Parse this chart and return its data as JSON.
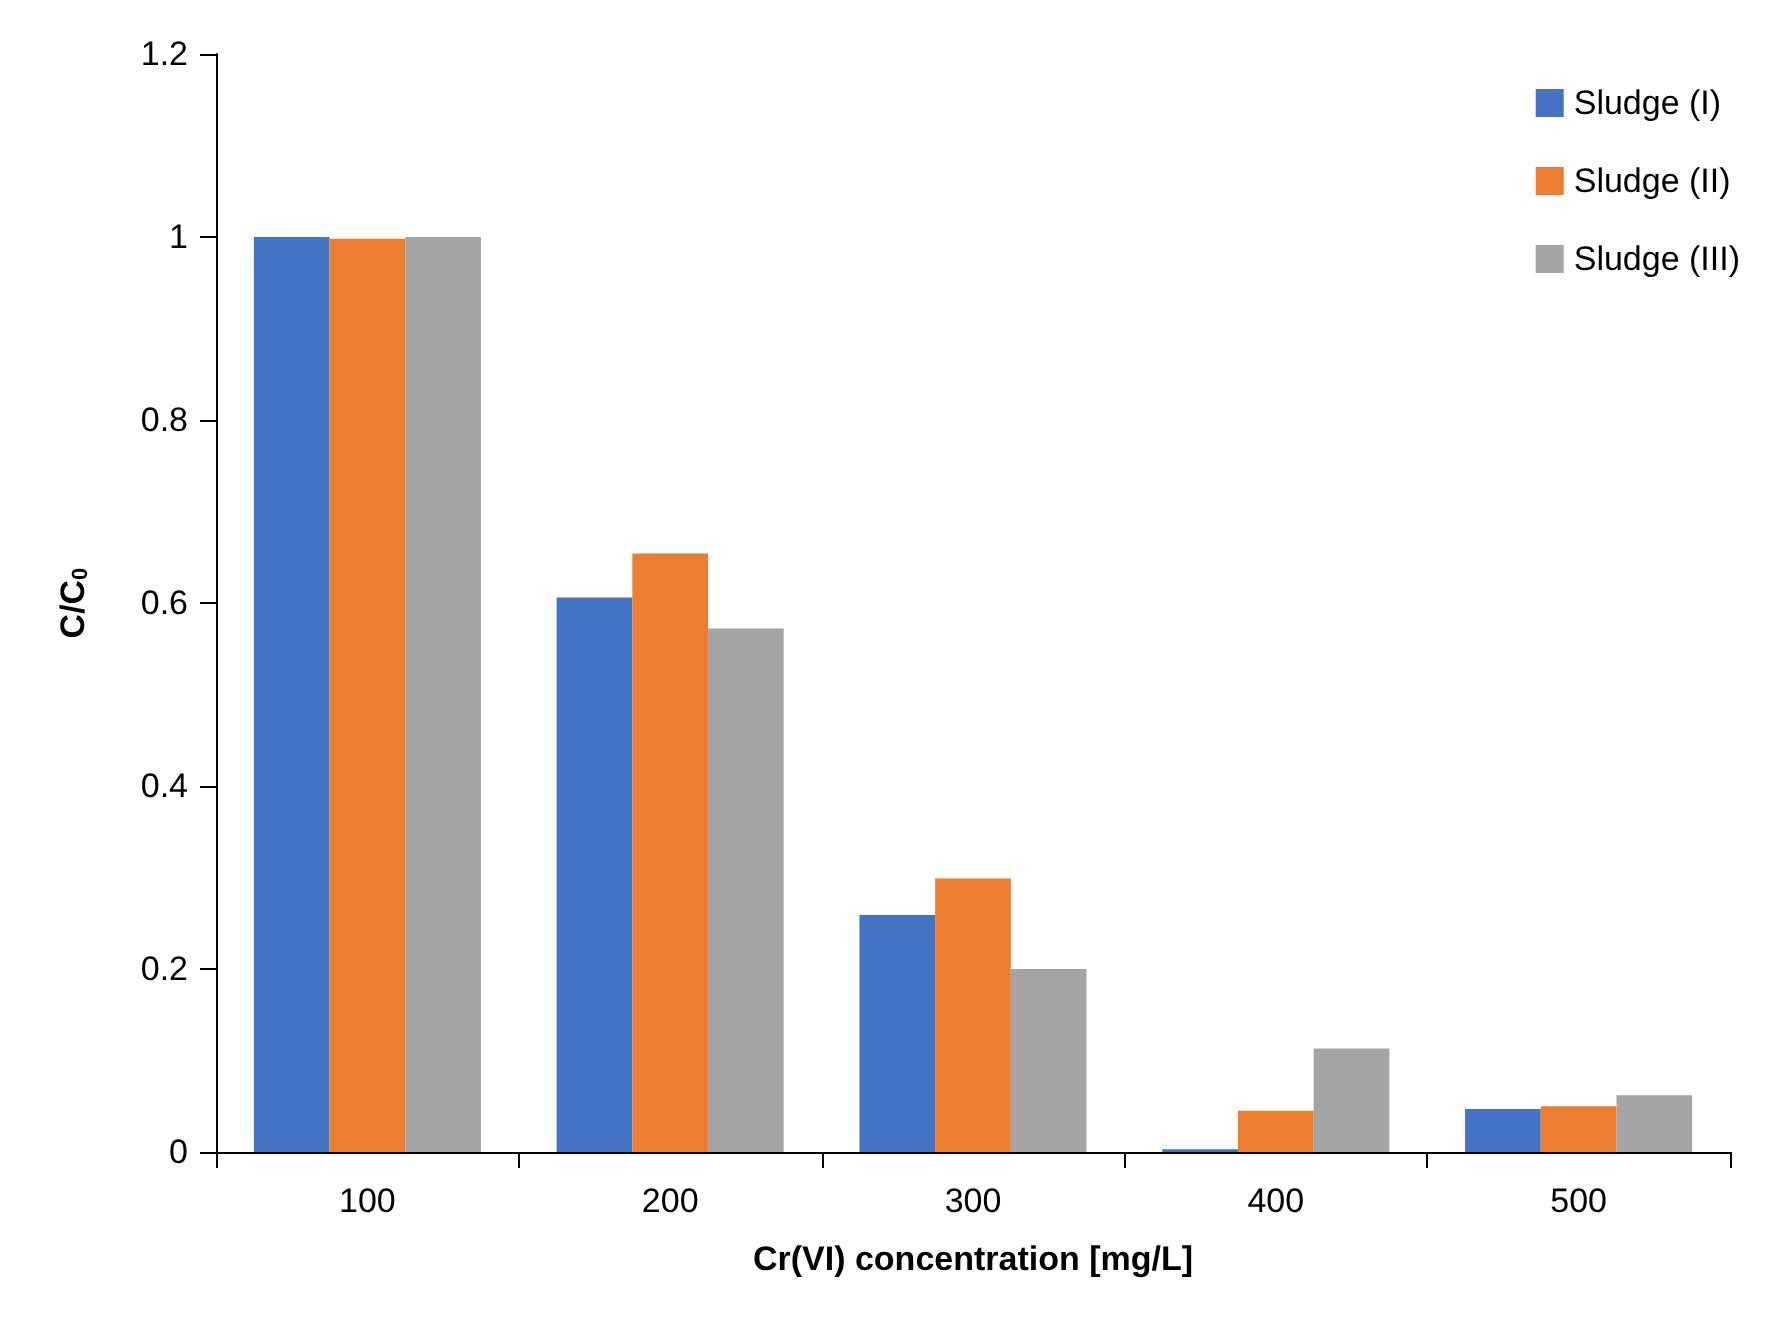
{
  "chart_data": {
    "type": "bar",
    "xlabel": "Cr(VI) concentration [mg/L]",
    "ylabel": "C/C$_{0}$",
    "categories": [
      "100",
      "200",
      "300",
      "400",
      "500"
    ],
    "series": [
      {
        "name": "Sludge (I)",
        "color": "#4472c4",
        "values": [
          1.0,
          0.606,
          0.259,
          0.003,
          0.047
        ]
      },
      {
        "name": "Sludge (II)",
        "color": "#ed7d31",
        "values": [
          0.998,
          0.654,
          0.299,
          0.045,
          0.05
        ]
      },
      {
        "name": "Sludge (III)",
        "color": "#a5a5a5",
        "values": [
          1.0,
          0.572,
          0.2,
          0.113,
          0.062
        ]
      }
    ],
    "ylim": [
      0,
      1.2
    ],
    "yticks": [
      0,
      0.2,
      0.4,
      0.6,
      0.8,
      1,
      1.2
    ],
    "grid": false,
    "legend": "top right"
  }
}
